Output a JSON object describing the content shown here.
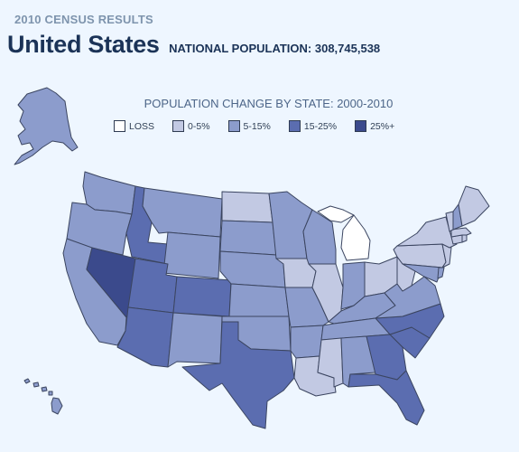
{
  "header": {
    "kicker": "2010 CENSUS RESULTS",
    "title": "United States",
    "national_population": "NATIONAL POPULATION: 308,745,538"
  },
  "map": {
    "subtitle": "POPULATION CHANGE BY STATE: 2000-2010",
    "legend": [
      {
        "key": "loss",
        "label": "LOSS",
        "color": "#ffffff"
      },
      {
        "key": "g0_5",
        "label": "0-5%",
        "color": "#c2c9e3"
      },
      {
        "key": "g5_15",
        "label": "5-15%",
        "color": "#8c9ccc"
      },
      {
        "key": "g15_25",
        "label": "15-25%",
        "color": "#5b6db0"
      },
      {
        "key": "g25p",
        "label": "25%+",
        "color": "#3b4a8c"
      }
    ],
    "states": {
      "WA": "g5_15",
      "OR": "g5_15",
      "CA": "g5_15",
      "NV": "g25p",
      "ID": "g15_25",
      "MT": "g5_15",
      "WY": "g5_15",
      "UT": "g15_25",
      "AZ": "g15_25",
      "CO": "g15_25",
      "NM": "g5_15",
      "ND": "g0_5",
      "SD": "g5_15",
      "NE": "g5_15",
      "KS": "g5_15",
      "OK": "g5_15",
      "TX": "g15_25",
      "MN": "g5_15",
      "IA": "g0_5",
      "MO": "g5_15",
      "AR": "g5_15",
      "LA": "g0_5",
      "WI": "g5_15",
      "IL": "g0_5",
      "MI": "loss",
      "IN": "g5_15",
      "OH": "g0_5",
      "KY": "g5_15",
      "TN": "g5_15",
      "MS": "g0_5",
      "AL": "g5_15",
      "GA": "g15_25",
      "FL": "g15_25",
      "SC": "g15_25",
      "NC": "g15_25",
      "VA": "g5_15",
      "WV": "g0_5",
      "PA": "g0_5",
      "NY": "g0_5",
      "VT": "g0_5",
      "NH": "g5_15",
      "ME": "g0_5",
      "MA": "g0_5",
      "CT": "g0_5",
      "RI": "g0_5",
      "NJ": "g0_5",
      "DE": "g5_15",
      "MD": "g5_15",
      "AK": "g5_15",
      "HI": "g5_15"
    }
  }
}
